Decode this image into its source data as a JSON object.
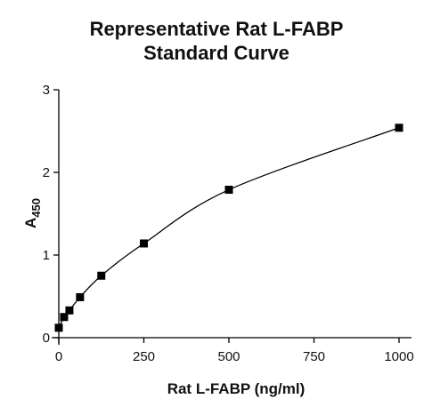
{
  "chart_data": {
    "type": "scatter",
    "title_line1": "Representative Rat L-FABP",
    "title_line2": "Standard Curve",
    "xlabel": "Rat L-FABP (ng/ml)",
    "ylabel_main": "A",
    "ylabel_sub": "450",
    "xlim": [
      0,
      1000
    ],
    "ylim": [
      0,
      3
    ],
    "xticks": [
      0,
      250,
      500,
      750,
      1000
    ],
    "yticks": [
      0,
      1,
      2,
      3
    ],
    "grid": false,
    "series": [
      {
        "x": [
          0,
          15.6,
          31.25,
          62.5,
          125,
          250,
          500,
          1000
        ],
        "y": [
          0.12,
          0.25,
          0.33,
          0.49,
          0.75,
          1.14,
          1.79,
          2.54
        ]
      }
    ],
    "fit_curve": true,
    "colors": {
      "marker": "#000000",
      "line": "#000000"
    }
  }
}
